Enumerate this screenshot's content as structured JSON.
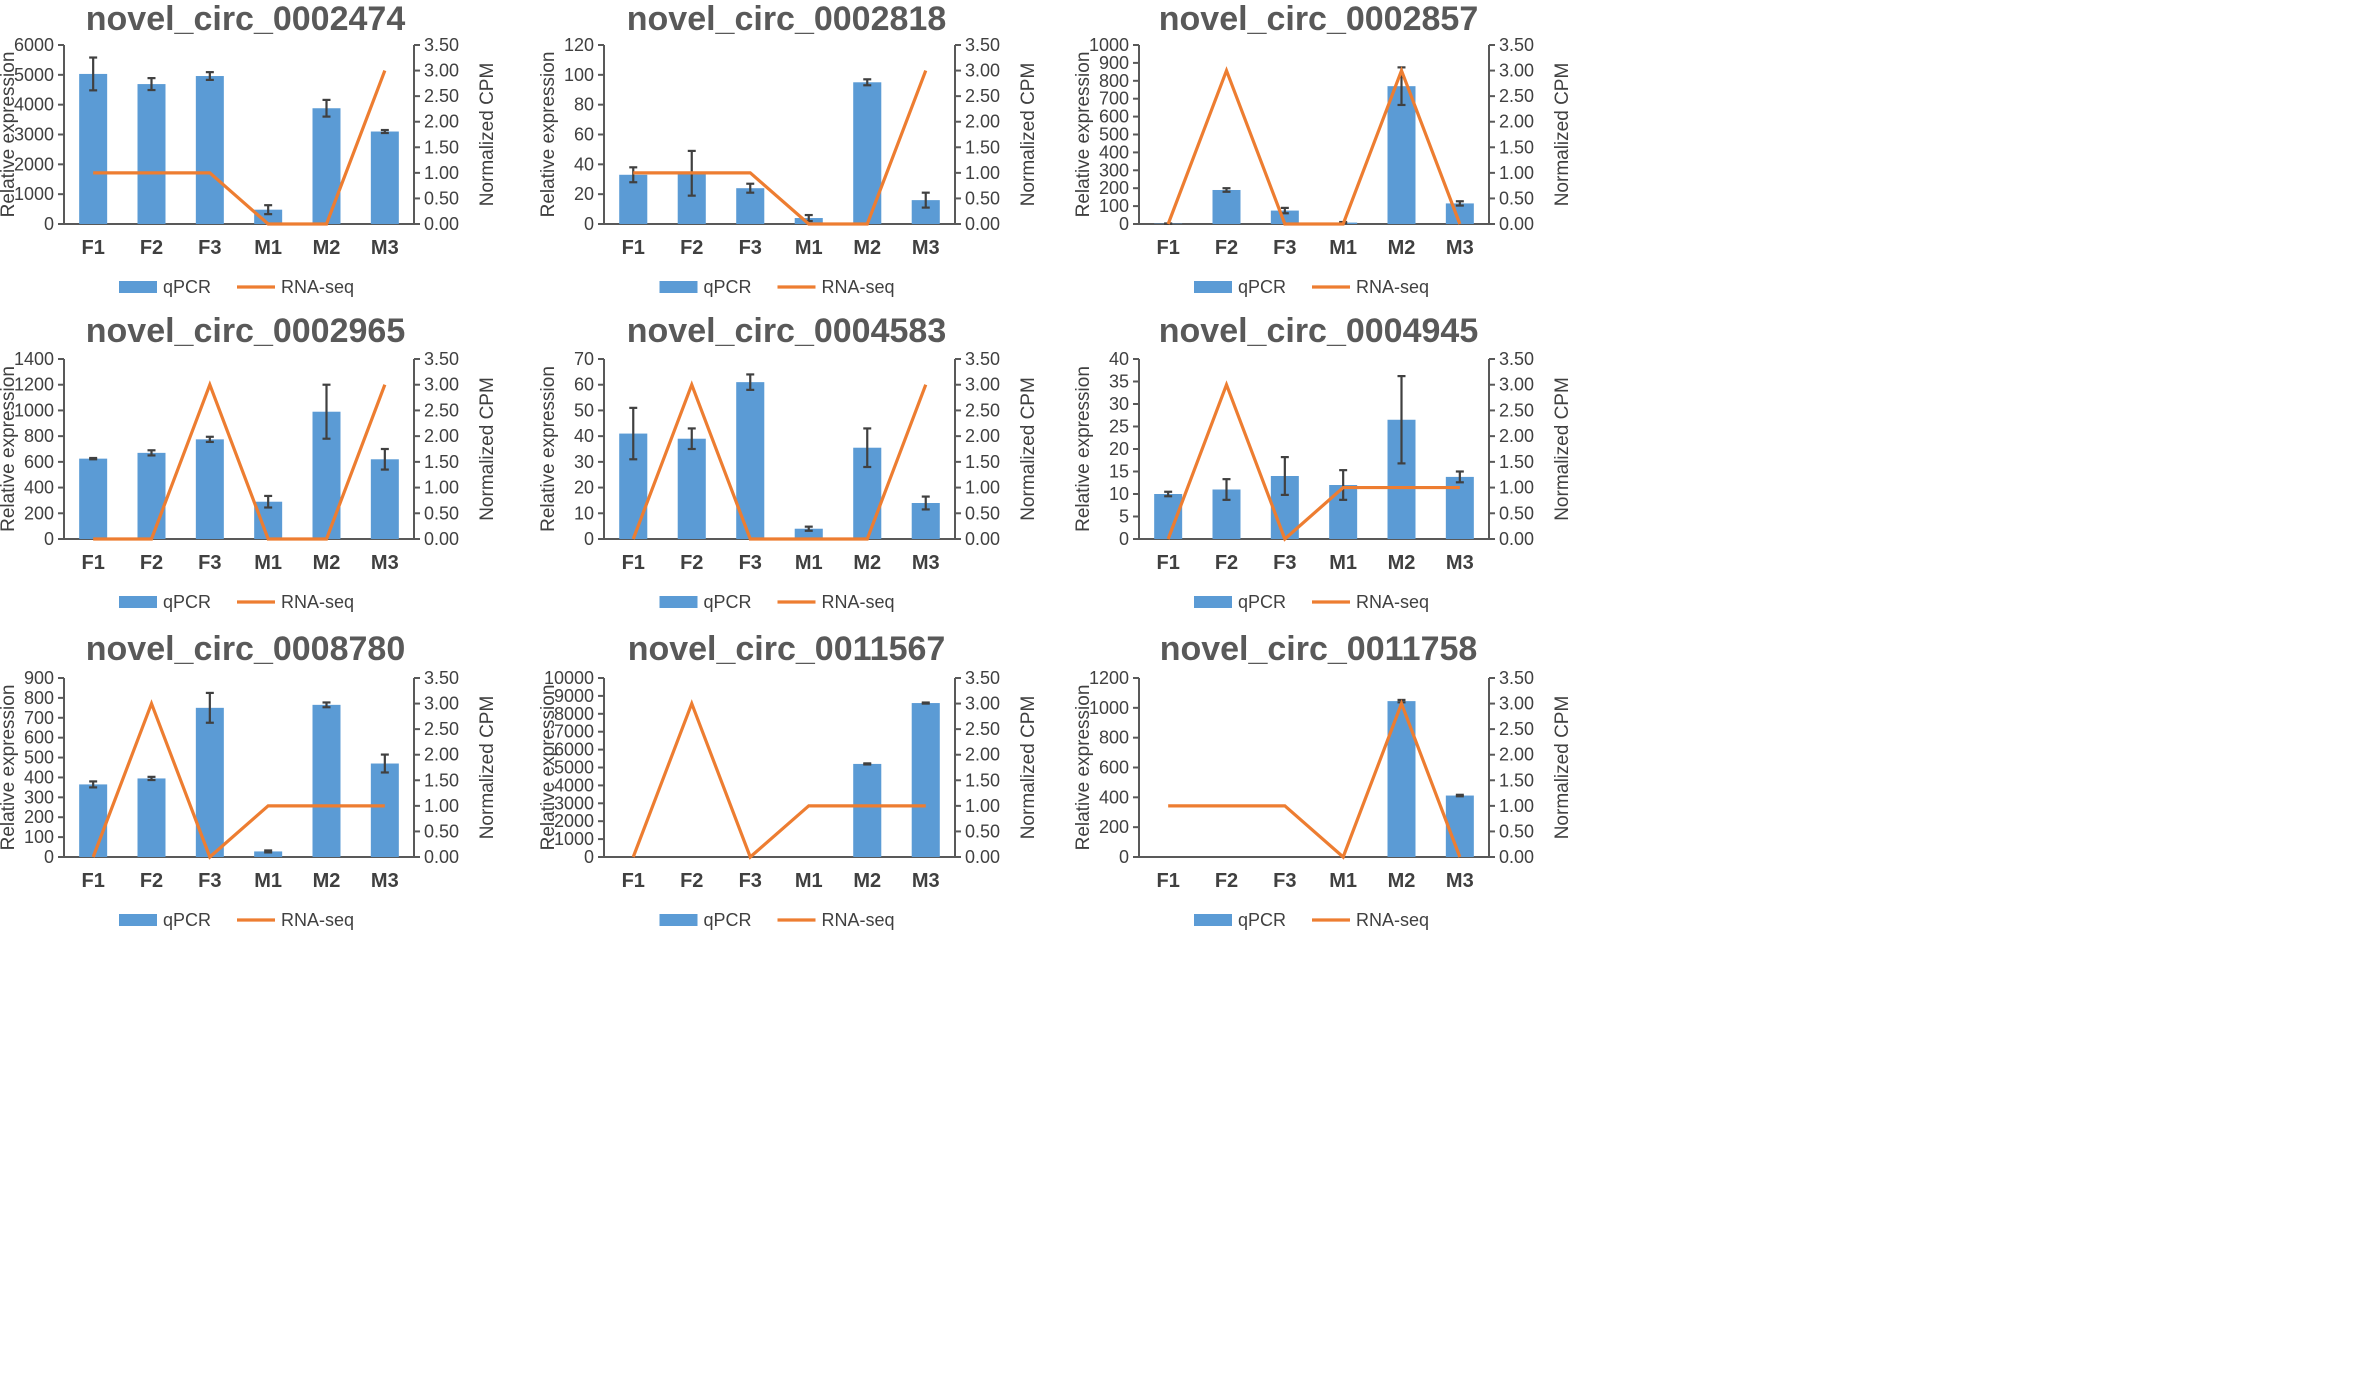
{
  "figure": {
    "legend": {
      "bar_label": "qPCR",
      "line_label": "RNA-seq"
    },
    "colors": {
      "bar": "#5b9bd5",
      "line": "#ed7d31",
      "axis": "#595959",
      "text": "#404040",
      "error": "#404040"
    }
  },
  "chart_data": [
    {
      "type": "bar",
      "title": "novel_circ_0002474",
      "categories": [
        "F1",
        "F2",
        "F3",
        "M1",
        "M2",
        "M3"
      ],
      "ylabel": "Relative expression",
      "y2label": "Normalized CPM",
      "ylim": [
        0,
        6000
      ],
      "yticks": [
        "0",
        "1000",
        "2000",
        "3000",
        "4000",
        "5000",
        "6000"
      ],
      "y2lim": [
        0,
        3.5
      ],
      "y2ticks": [
        "0.00",
        "0.50",
        "1.00",
        "1.50",
        "2.00",
        "2.50",
        "3.00",
        "3.50"
      ],
      "series": [
        {
          "name": "qPCR",
          "type": "bar",
          "values": [
            5030,
            4690,
            4960,
            480,
            3880,
            3100
          ],
          "errors": [
            550,
            200,
            130,
            150,
            280,
            50
          ]
        },
        {
          "name": "RNA-seq",
          "type": "line",
          "axis": "y2",
          "values": [
            1,
            1,
            1,
            0,
            0,
            3
          ]
        }
      ]
    },
    {
      "type": "bar",
      "title": "novel_circ_0002818",
      "categories": [
        "F1",
        "F2",
        "F3",
        "M1",
        "M2",
        "M3"
      ],
      "ylabel": "Relative expression",
      "y2label": "Normalized CPM",
      "ylim": [
        0,
        120
      ],
      "yticks": [
        "0",
        "20",
        "40",
        "60",
        "80",
        "100",
        "120"
      ],
      "y2lim": [
        0,
        3.5
      ],
      "y2ticks": [
        "0.00",
        "0.50",
        "1.00",
        "1.50",
        "2.00",
        "2.50",
        "3.00",
        "3.50"
      ],
      "series": [
        {
          "name": "qPCR",
          "type": "bar",
          "values": [
            33,
            34,
            24,
            4,
            95,
            16
          ],
          "errors": [
            5,
            15,
            3,
            2,
            2,
            5
          ]
        },
        {
          "name": "RNA-seq",
          "type": "line",
          "axis": "y2",
          "values": [
            1,
            1,
            1,
            0,
            0,
            3
          ]
        }
      ]
    },
    {
      "type": "bar",
      "title": "novel_circ_0002857",
      "categories": [
        "F1",
        "F2",
        "F3",
        "M1",
        "M2",
        "M3"
      ],
      "ylabel": "Relative expression",
      "y2label": "Normalized CPM",
      "ylim": [
        0,
        1000
      ],
      "yticks": [
        "0",
        "100",
        "200",
        "300",
        "400",
        "500",
        "600",
        "700",
        "800",
        "900",
        "1000"
      ],
      "y2lim": [
        0,
        3.5
      ],
      "y2ticks": [
        "0.00",
        "0.50",
        "1.00",
        "1.50",
        "2.00",
        "2.50",
        "3.00",
        "3.50"
      ],
      "series": [
        {
          "name": "qPCR",
          "type": "bar",
          "values": [
            2,
            190,
            75,
            8,
            770,
            115
          ],
          "errors": [
            1,
            10,
            15,
            3,
            105,
            12
          ]
        },
        {
          "name": "RNA-seq",
          "type": "line",
          "axis": "y2",
          "values": [
            0,
            3,
            0,
            0,
            3,
            0
          ]
        }
      ]
    },
    {
      "type": "bar",
      "title": "novel_circ_0002965",
      "categories": [
        "F1",
        "F2",
        "F3",
        "M1",
        "M2",
        "M3"
      ],
      "ylabel": "Relative expression",
      "y2label": "Normalized CPM",
      "ylim": [
        0,
        1400
      ],
      "yticks": [
        "0",
        "200",
        "400",
        "600",
        "800",
        "1000",
        "1200",
        "1400"
      ],
      "y2lim": [
        0,
        3.5
      ],
      "y2ticks": [
        "0.00",
        "0.50",
        "1.00",
        "1.50",
        "2.00",
        "2.50",
        "3.00",
        "3.50"
      ],
      "series": [
        {
          "name": "qPCR",
          "type": "bar",
          "values": [
            625,
            670,
            775,
            290,
            990,
            620
          ],
          "errors": [
            5,
            20,
            20,
            45,
            210,
            80
          ]
        },
        {
          "name": "RNA-seq",
          "type": "line",
          "axis": "y2",
          "values": [
            0,
            0,
            3,
            0,
            0,
            3
          ]
        }
      ]
    },
    {
      "type": "bar",
      "title": "novel_circ_0004583",
      "categories": [
        "F1",
        "F2",
        "F3",
        "M1",
        "M2",
        "M3"
      ],
      "ylabel": "Relative expression",
      "y2label": "Normalized CPM",
      "ylim": [
        0,
        70
      ],
      "yticks": [
        "0",
        "10",
        "20",
        "30",
        "40",
        "50",
        "60",
        "70"
      ],
      "y2lim": [
        0,
        3.5
      ],
      "y2ticks": [
        "0.00",
        "0.50",
        "1.00",
        "1.50",
        "2.00",
        "2.50",
        "3.00",
        "3.50"
      ],
      "series": [
        {
          "name": "qPCR",
          "type": "bar",
          "values": [
            41,
            39,
            61,
            4,
            35.5,
            14
          ],
          "errors": [
            10,
            4,
            3,
            0.8,
            7.5,
            2.5
          ]
        },
        {
          "name": "RNA-seq",
          "type": "line",
          "axis": "y2",
          "values": [
            0,
            3,
            0,
            0,
            0,
            3
          ]
        }
      ]
    },
    {
      "type": "bar",
      "title": "novel_circ_0004945",
      "categories": [
        "F1",
        "F2",
        "F3",
        "M1",
        "M2",
        "M3"
      ],
      "ylabel": "Relative expression",
      "y2label": "Normalized CPM",
      "ylim": [
        0,
        40
      ],
      "yticks": [
        "0",
        "5",
        "10",
        "15",
        "20",
        "25",
        "30",
        "35",
        "40"
      ],
      "y2lim": [
        0,
        3.5
      ],
      "y2ticks": [
        "0.00",
        "0.50",
        "1.00",
        "1.50",
        "2.00",
        "2.50",
        "3.00",
        "3.50"
      ],
      "series": [
        {
          "name": "qPCR",
          "type": "bar",
          "values": [
            10,
            11,
            14,
            12,
            26.5,
            13.8
          ],
          "errors": [
            0.5,
            2.3,
            4.2,
            3.3,
            9.7,
            1.2
          ]
        },
        {
          "name": "RNA-seq",
          "type": "line",
          "axis": "y2",
          "values": [
            0,
            3,
            0,
            1,
            1,
            1
          ]
        }
      ]
    },
    {
      "type": "bar",
      "title": "novel_circ_0008780",
      "categories": [
        "F1",
        "F2",
        "F3",
        "M1",
        "M2",
        "M3"
      ],
      "ylabel": "Relative expression",
      "y2label": "Normalized CPM",
      "ylim": [
        0,
        900
      ],
      "yticks": [
        "0",
        "100",
        "200",
        "300",
        "400",
        "500",
        "600",
        "700",
        "800",
        "900"
      ],
      "y2lim": [
        0,
        3.5
      ],
      "y2ticks": [
        "0.00",
        "0.50",
        "1.00",
        "1.50",
        "2.00",
        "2.50",
        "3.00",
        "3.50"
      ],
      "series": [
        {
          "name": "qPCR",
          "type": "bar",
          "values": [
            365,
            395,
            750,
            28,
            765,
            470
          ],
          "errors": [
            15,
            8,
            75,
            5,
            12,
            45
          ]
        },
        {
          "name": "RNA-seq",
          "type": "line",
          "axis": "y2",
          "values": [
            0,
            3,
            0,
            1,
            1,
            1
          ]
        }
      ]
    },
    {
      "type": "bar",
      "title": "novel_circ_0011567",
      "categories": [
        "F1",
        "F2",
        "F3",
        "M1",
        "M2",
        "M3"
      ],
      "ylabel": "Relative expression",
      "y2label": "Normalized CPM",
      "ylim": [
        0,
        10000
      ],
      "yticks": [
        "0",
        "1000",
        "2000",
        "3000",
        "4000",
        "5000",
        "6000",
        "7000",
        "8000",
        "9000",
        "10000"
      ],
      "y2lim": [
        0,
        3.5
      ],
      "y2ticks": [
        "0.00",
        "0.50",
        "1.00",
        "1.50",
        "2.00",
        "2.50",
        "3.00",
        "3.50"
      ],
      "series": [
        {
          "name": "qPCR",
          "type": "bar",
          "values": [
            0,
            0,
            0,
            0,
            5200,
            8600
          ],
          "errors": [
            0,
            0,
            0,
            0,
            30,
            30
          ]
        },
        {
          "name": "RNA-seq",
          "type": "line",
          "axis": "y2",
          "values": [
            0,
            3,
            0,
            1,
            1,
            1
          ]
        }
      ]
    },
    {
      "type": "bar",
      "title": "novel_circ_0011758",
      "categories": [
        "F1",
        "F2",
        "F3",
        "M1",
        "M2",
        "M3"
      ],
      "ylabel": "Relative expression",
      "y2label": "Normalized CPM",
      "ylim": [
        0,
        1200
      ],
      "yticks": [
        "0",
        "200",
        "400",
        "600",
        "800",
        "1000",
        "1200"
      ],
      "y2lim": [
        0,
        3.5
      ],
      "y2ticks": [
        "0.00",
        "0.50",
        "1.00",
        "1.50",
        "2.00",
        "2.50",
        "3.00",
        "3.50"
      ],
      "series": [
        {
          "name": "qPCR",
          "type": "bar",
          "values": [
            0,
            0,
            0,
            0,
            1045,
            412
          ],
          "errors": [
            0,
            0,
            0,
            0,
            8,
            5
          ]
        },
        {
          "name": "RNA-seq",
          "type": "line",
          "axis": "y2",
          "values": [
            1,
            1,
            1,
            0,
            3,
            0
          ]
        }
      ]
    }
  ]
}
